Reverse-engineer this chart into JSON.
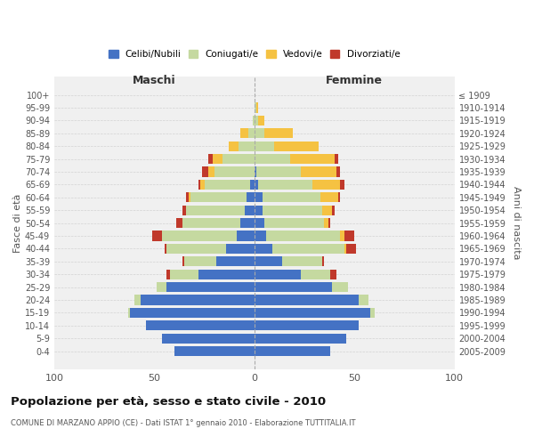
{
  "age_groups": [
    "0-4",
    "5-9",
    "10-14",
    "15-19",
    "20-24",
    "25-29",
    "30-34",
    "35-39",
    "40-44",
    "45-49",
    "50-54",
    "55-59",
    "60-64",
    "65-69",
    "70-74",
    "75-79",
    "80-84",
    "85-89",
    "90-94",
    "95-99",
    "100+"
  ],
  "birth_years": [
    "2005-2009",
    "2000-2004",
    "1995-1999",
    "1990-1994",
    "1985-1989",
    "1980-1984",
    "1975-1979",
    "1970-1974",
    "1965-1969",
    "1960-1964",
    "1955-1959",
    "1950-1954",
    "1945-1949",
    "1940-1944",
    "1935-1939",
    "1930-1934",
    "1925-1929",
    "1920-1924",
    "1915-1919",
    "1910-1914",
    "≤ 1909"
  ],
  "male": {
    "celibi": [
      40,
      46,
      54,
      62,
      57,
      44,
      28,
      19,
      14,
      9,
      7,
      5,
      4,
      2,
      0,
      0,
      0,
      0,
      0,
      0,
      0
    ],
    "coniugati": [
      0,
      0,
      0,
      1,
      3,
      5,
      14,
      16,
      30,
      37,
      29,
      29,
      28,
      23,
      20,
      16,
      8,
      3,
      1,
      0,
      0
    ],
    "vedovi": [
      0,
      0,
      0,
      0,
      0,
      0,
      0,
      0,
      0,
      0,
      0,
      0,
      1,
      2,
      3,
      5,
      5,
      4,
      0,
      0,
      0
    ],
    "divorziati": [
      0,
      0,
      0,
      0,
      0,
      0,
      2,
      1,
      1,
      5,
      3,
      2,
      1,
      1,
      3,
      2,
      0,
      0,
      0,
      0,
      0
    ]
  },
  "female": {
    "nubili": [
      38,
      46,
      52,
      58,
      52,
      39,
      23,
      14,
      9,
      6,
      5,
      4,
      4,
      2,
      1,
      0,
      0,
      0,
      0,
      0,
      0
    ],
    "coniugate": [
      0,
      0,
      0,
      2,
      5,
      8,
      15,
      20,
      36,
      37,
      30,
      30,
      29,
      27,
      22,
      18,
      10,
      5,
      2,
      1,
      0
    ],
    "vedove": [
      0,
      0,
      0,
      0,
      0,
      0,
      0,
      0,
      1,
      2,
      2,
      5,
      9,
      14,
      18,
      22,
      22,
      14,
      3,
      1,
      0
    ],
    "divorziate": [
      0,
      0,
      0,
      0,
      0,
      0,
      3,
      1,
      5,
      5,
      1,
      1,
      1,
      2,
      2,
      2,
      0,
      0,
      0,
      0,
      0
    ]
  },
  "colors": {
    "celibi": "#4472c4",
    "coniugati": "#c5d9a0",
    "vedovi": "#f5c242",
    "divorziati": "#c0392b"
  },
  "xlim": 100,
  "title": "Popolazione per età, sesso e stato civile - 2010",
  "subtitle": "COMUNE DI MARZANO APPIO (CE) - Dati ISTAT 1° gennaio 2010 - Elaborazione TUTTITALIA.IT",
  "ylabel_left": "Fasce di età",
  "ylabel_right": "Anni di nascita",
  "xlabel_left": "Maschi",
  "xlabel_right": "Femmine",
  "bg_color": "#f0f0f0",
  "grid_color": "#cccccc"
}
